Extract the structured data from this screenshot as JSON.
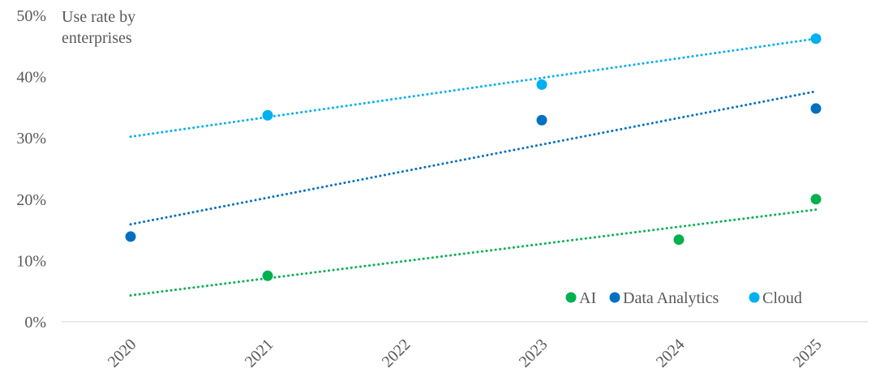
{
  "chart_data": {
    "type": "scatter",
    "ylabel": "Use rate by\nenterprises",
    "ylabel_lines": [
      "Use rate by",
      "enterprises"
    ],
    "x_ticks": [
      "2020",
      "2021",
      "2022",
      "2023",
      "2024",
      "2025"
    ],
    "y_ticks": [
      "0%",
      "10%",
      "20%",
      "30%",
      "40%",
      "50%"
    ],
    "ylim": [
      0,
      50
    ],
    "xlim": [
      2020,
      2025
    ],
    "grid": false,
    "legend_position": "bottom-right",
    "trendline_style": "dotted linear",
    "series": [
      {
        "name": "AI",
        "color": "#00b050",
        "points": [
          {
            "x": 2021,
            "y": 7.5
          },
          {
            "x": 2024,
            "y": 13.4
          },
          {
            "x": 2025,
            "y": 20.0
          }
        ],
        "trend": {
          "x0": 2020,
          "y0": 4.3,
          "x1": 2025,
          "y1": 18.3
        }
      },
      {
        "name": "Data Analytics",
        "color": "#0070c0",
        "points": [
          {
            "x": 2020,
            "y": 13.9
          },
          {
            "x": 2023,
            "y": 32.9
          },
          {
            "x": 2025,
            "y": 34.8
          }
        ],
        "trend": {
          "x0": 2020,
          "y0": 15.9,
          "x1": 2025,
          "y1": 37.6
        }
      },
      {
        "name": "Cloud",
        "color": "#00b0f0",
        "points": [
          {
            "x": 2021,
            "y": 33.7
          },
          {
            "x": 2023,
            "y": 38.7
          },
          {
            "x": 2025,
            "y": 46.2
          }
        ],
        "trend": {
          "x0": 2020,
          "y0": 30.2,
          "x1": 2025,
          "y1": 46.2
        }
      }
    ]
  }
}
